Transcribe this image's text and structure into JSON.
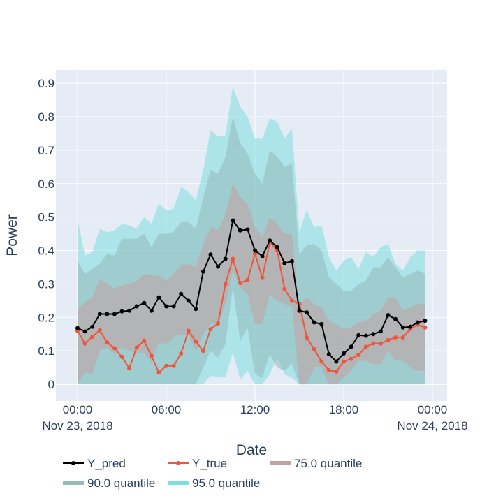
{
  "chart_data": {
    "type": "line",
    "xlabel": "Date",
    "ylabel": "Power",
    "x": [
      "00:00",
      "00:30",
      "01:00",
      "01:30",
      "02:00",
      "02:30",
      "03:00",
      "03:30",
      "04:00",
      "04:30",
      "05:00",
      "05:30",
      "06:00",
      "06:30",
      "07:00",
      "07:30",
      "08:00",
      "08:30",
      "09:00",
      "09:30",
      "10:00",
      "10:30",
      "11:00",
      "11:30",
      "12:00",
      "12:30",
      "13:00",
      "13:30",
      "14:00",
      "14:30",
      "15:00",
      "15:30",
      "16:00",
      "16:30",
      "17:00",
      "17:30",
      "18:00",
      "18:30",
      "19:00",
      "19:30",
      "20:00",
      "20:30",
      "21:00",
      "21:30",
      "22:00",
      "22:30",
      "23:00",
      "23:30"
    ],
    "x_ticks": [
      {
        "value": "00:00",
        "label": "00:00",
        "sublabel": "Nov 23, 2018"
      },
      {
        "value": "06:00",
        "label": "06:00",
        "sublabel": ""
      },
      {
        "value": "12:00",
        "label": "12:00",
        "sublabel": ""
      },
      {
        "value": "18:00",
        "label": "18:00",
        "sublabel": ""
      },
      {
        "value": "24:00",
        "label": "00:00",
        "sublabel": "Nov 24, 2018"
      }
    ],
    "ylim": [
      -0.05,
      0.94
    ],
    "y_ticks": [
      0,
      0.1,
      0.2,
      0.3,
      0.4,
      0.5,
      0.6,
      0.7,
      0.8,
      0.9
    ],
    "y_tick_labels": [
      "0",
      "0.1",
      "0.2",
      "0.3",
      "0.4",
      "0.5",
      "0.6",
      "0.7",
      "0.8",
      "0.9"
    ],
    "grid": true,
    "legend_position": "bottom-left",
    "series": [
      {
        "name": "Y_pred",
        "kind": "line",
        "color": "#000000",
        "values": [
          0.168,
          0.158,
          0.172,
          0.21,
          0.21,
          0.21,
          0.218,
          0.22,
          0.233,
          0.243,
          0.22,
          0.26,
          0.233,
          0.233,
          0.27,
          0.25,
          0.225,
          0.337,
          0.388,
          0.352,
          0.375,
          0.49,
          0.46,
          0.463,
          0.4,
          0.383,
          0.43,
          0.41,
          0.362,
          0.368,
          0.22,
          0.215,
          0.185,
          0.18,
          0.09,
          0.068,
          0.092,
          0.112,
          0.147,
          0.145,
          0.15,
          0.158,
          0.207,
          0.195,
          0.17,
          0.172,
          0.185,
          0.19
        ]
      },
      {
        "name": "Y_true",
        "kind": "line",
        "color": "#ef553b",
        "values": [
          0.16,
          0.122,
          0.142,
          0.162,
          0.125,
          0.108,
          0.082,
          0.048,
          0.11,
          0.13,
          0.085,
          0.035,
          0.055,
          0.055,
          0.092,
          0.16,
          0.128,
          0.1,
          0.165,
          0.182,
          0.3,
          0.375,
          0.303,
          0.312,
          0.39,
          0.318,
          0.425,
          0.4,
          0.285,
          0.25,
          0.24,
          0.14,
          0.105,
          0.068,
          0.042,
          0.038,
          0.068,
          0.076,
          0.088,
          0.112,
          0.122,
          0.122,
          0.132,
          0.14,
          0.14,
          0.165,
          0.178,
          0.17
        ]
      },
      {
        "name": "75.0 quantile",
        "kind": "band",
        "color": "#c1a1a1",
        "lower": [
          0.0,
          0.035,
          0.03,
          0.1,
          0.11,
          0.09,
          0.11,
          0.1,
          0.095,
          0.095,
          0.065,
          0.125,
          0.12,
          0.14,
          0.15,
          0.145,
          0.1,
          0.15,
          0.18,
          0.18,
          0.24,
          0.34,
          0.29,
          0.27,
          0.18,
          0.18,
          0.27,
          0.25,
          0.24,
          0.23,
          0.0,
          0.0,
          0.05,
          0.05,
          0.0,
          0.0,
          0.02,
          0.04,
          0.07,
          0.07,
          0.06,
          0.06,
          0.1,
          0.07,
          0.07,
          0.05,
          0.04,
          0.04
        ],
        "upper": [
          0.225,
          0.245,
          0.26,
          0.315,
          0.3,
          0.285,
          0.295,
          0.3,
          0.31,
          0.33,
          0.325,
          0.325,
          0.31,
          0.33,
          0.355,
          0.36,
          0.35,
          0.42,
          0.47,
          0.46,
          0.51,
          0.6,
          0.56,
          0.54,
          0.47,
          0.44,
          0.5,
          0.48,
          0.45,
          0.45,
          0.235,
          0.26,
          0.24,
          0.23,
          0.19,
          0.18,
          0.165,
          0.17,
          0.185,
          0.19,
          0.21,
          0.22,
          0.26,
          0.26,
          0.22,
          0.23,
          0.24,
          0.24
        ]
      },
      {
        "name": "90.0 quantile",
        "kind": "band",
        "color": "#96b9b9",
        "lower": [
          0.0,
          0.0,
          0.0,
          0.0,
          0.0,
          0.0,
          0.0,
          0.0,
          0.0,
          0.0,
          0.0,
          0.0,
          0.0,
          0.0,
          0.0,
          0.0,
          0.0,
          0.05,
          0.1,
          0.08,
          0.12,
          0.29,
          0.13,
          0.17,
          0.03,
          0.02,
          0.09,
          0.05,
          0.04,
          0.06,
          0.0,
          0.0,
          0.0,
          0.0,
          0.0,
          0.0,
          0.0,
          0.0,
          0.0,
          0.0,
          0.0,
          0.0,
          0.0,
          0.0,
          0.0,
          0.0,
          0.0,
          0.0
        ],
        "upper": [
          0.37,
          0.33,
          0.345,
          0.36,
          0.39,
          0.385,
          0.435,
          0.435,
          0.435,
          0.45,
          0.41,
          0.45,
          0.45,
          0.455,
          0.485,
          0.485,
          0.465,
          0.56,
          0.64,
          0.63,
          0.68,
          0.8,
          0.72,
          0.69,
          0.63,
          0.6,
          0.7,
          0.68,
          0.65,
          0.66,
          0.39,
          0.415,
          0.42,
          0.4,
          0.32,
          0.3,
          0.28,
          0.28,
          0.3,
          0.31,
          0.35,
          0.35,
          0.38,
          0.35,
          0.32,
          0.33,
          0.34,
          0.33
        ]
      },
      {
        "name": "95.0 quantile",
        "kind": "band",
        "color": "#7ddfde",
        "lower": [
          0.0,
          0.0,
          0.0,
          0.0,
          0.0,
          0.0,
          0.0,
          0.0,
          0.0,
          0.0,
          0.0,
          0.0,
          0.0,
          0.0,
          0.0,
          0.0,
          0.0,
          0.0,
          0.025,
          0.022,
          0.02,
          0.095,
          0.015,
          0.04,
          0.0,
          0.0,
          0.03,
          0.08,
          0.03,
          0.02,
          0.0,
          0.0,
          0.0,
          0.0,
          0.0,
          0.0,
          0.0,
          0.0,
          0.0,
          0.0,
          0.0,
          0.0,
          0.0,
          0.0,
          0.0,
          0.0,
          0.0,
          0.0
        ],
        "upper": [
          0.495,
          0.385,
          0.395,
          0.465,
          0.455,
          0.46,
          0.48,
          0.475,
          0.465,
          0.5,
          0.48,
          0.54,
          0.52,
          0.525,
          0.59,
          0.575,
          0.55,
          0.64,
          0.76,
          0.74,
          0.745,
          0.89,
          0.83,
          0.8,
          0.735,
          0.735,
          0.795,
          0.785,
          0.735,
          0.765,
          0.455,
          0.52,
          0.47,
          0.475,
          0.38,
          0.34,
          0.37,
          0.38,
          0.345,
          0.395,
          0.38,
          0.41,
          0.42,
          0.36,
          0.34,
          0.38,
          0.4,
          0.4
        ]
      }
    ],
    "legend_order": [
      "Y_pred",
      "Y_true",
      "75.0 quantile",
      "90.0 quantile",
      "95.0 quantile"
    ]
  }
}
